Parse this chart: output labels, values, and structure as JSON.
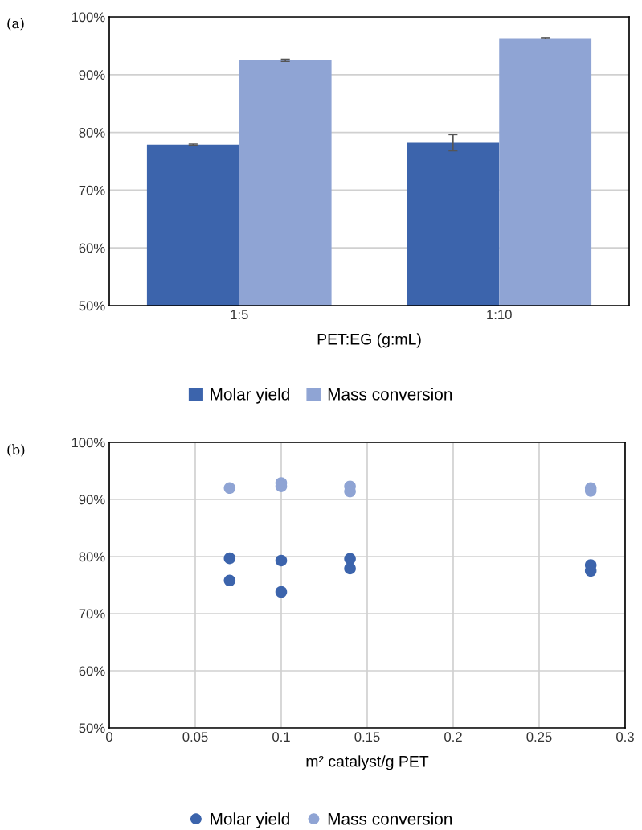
{
  "chart_data": [
    {
      "type": "bar",
      "annotations": [
        "(a)"
      ],
      "xlabel": "PET:EG (g:mL)",
      "categories": [
        "1:5",
        "1:10"
      ],
      "series": [
        {
          "name": "Molar yield",
          "color": "#3c64ac",
          "values": [
            77.9,
            78.2
          ],
          "errors": [
            0.1,
            1.4
          ]
        },
        {
          "name": "Mass conversion",
          "color": "#8fa4d4",
          "values": [
            92.5,
            96.3
          ],
          "errors": [
            0.2,
            0.1
          ]
        }
      ],
      "ylim": [
        50,
        100
      ],
      "yticks": [
        {
          "value": 50,
          "label": "50%"
        },
        {
          "value": 60,
          "label": "60%"
        },
        {
          "value": 70,
          "label": "70%"
        },
        {
          "value": 80,
          "label": "80%"
        },
        {
          "value": 90,
          "label": "90%"
        },
        {
          "value": 100,
          "label": "100%"
        }
      ],
      "grid": "y",
      "legend": "bottom"
    },
    {
      "type": "scatter",
      "annotations": [
        "(b)"
      ],
      "xlabel": "m² catalyst/g PET",
      "series": [
        {
          "name": "Molar yield",
          "color": "#3c64ac",
          "x": [
            0.07,
            0.07,
            0.1,
            0.1,
            0.14,
            0.14,
            0.28,
            0.28
          ],
          "values": [
            79.7,
            75.8,
            79.3,
            73.8,
            79.6,
            77.9,
            78.5,
            77.5
          ]
        },
        {
          "name": "Mass conversion",
          "color": "#8fa4d4",
          "x": [
            0.07,
            0.1,
            0.1,
            0.14,
            0.14,
            0.28,
            0.28
          ],
          "values": [
            92.0,
            92.9,
            92.3,
            92.3,
            91.4,
            92.0,
            91.5
          ]
        }
      ],
      "xlim": [
        0,
        0.3
      ],
      "xticks": [
        0,
        0.05,
        0.1,
        0.15,
        0.2,
        0.25,
        0.3
      ],
      "ylim": [
        50,
        100
      ],
      "yticks": [
        {
          "value": 50,
          "label": "50%"
        },
        {
          "value": 60,
          "label": "60%"
        },
        {
          "value": 70,
          "label": "70%"
        },
        {
          "value": 80,
          "label": "80%"
        },
        {
          "value": 90,
          "label": "90%"
        },
        {
          "value": 100,
          "label": "100%"
        }
      ],
      "grid": true,
      "legend": "bottom",
      "marker": "circle"
    }
  ]
}
